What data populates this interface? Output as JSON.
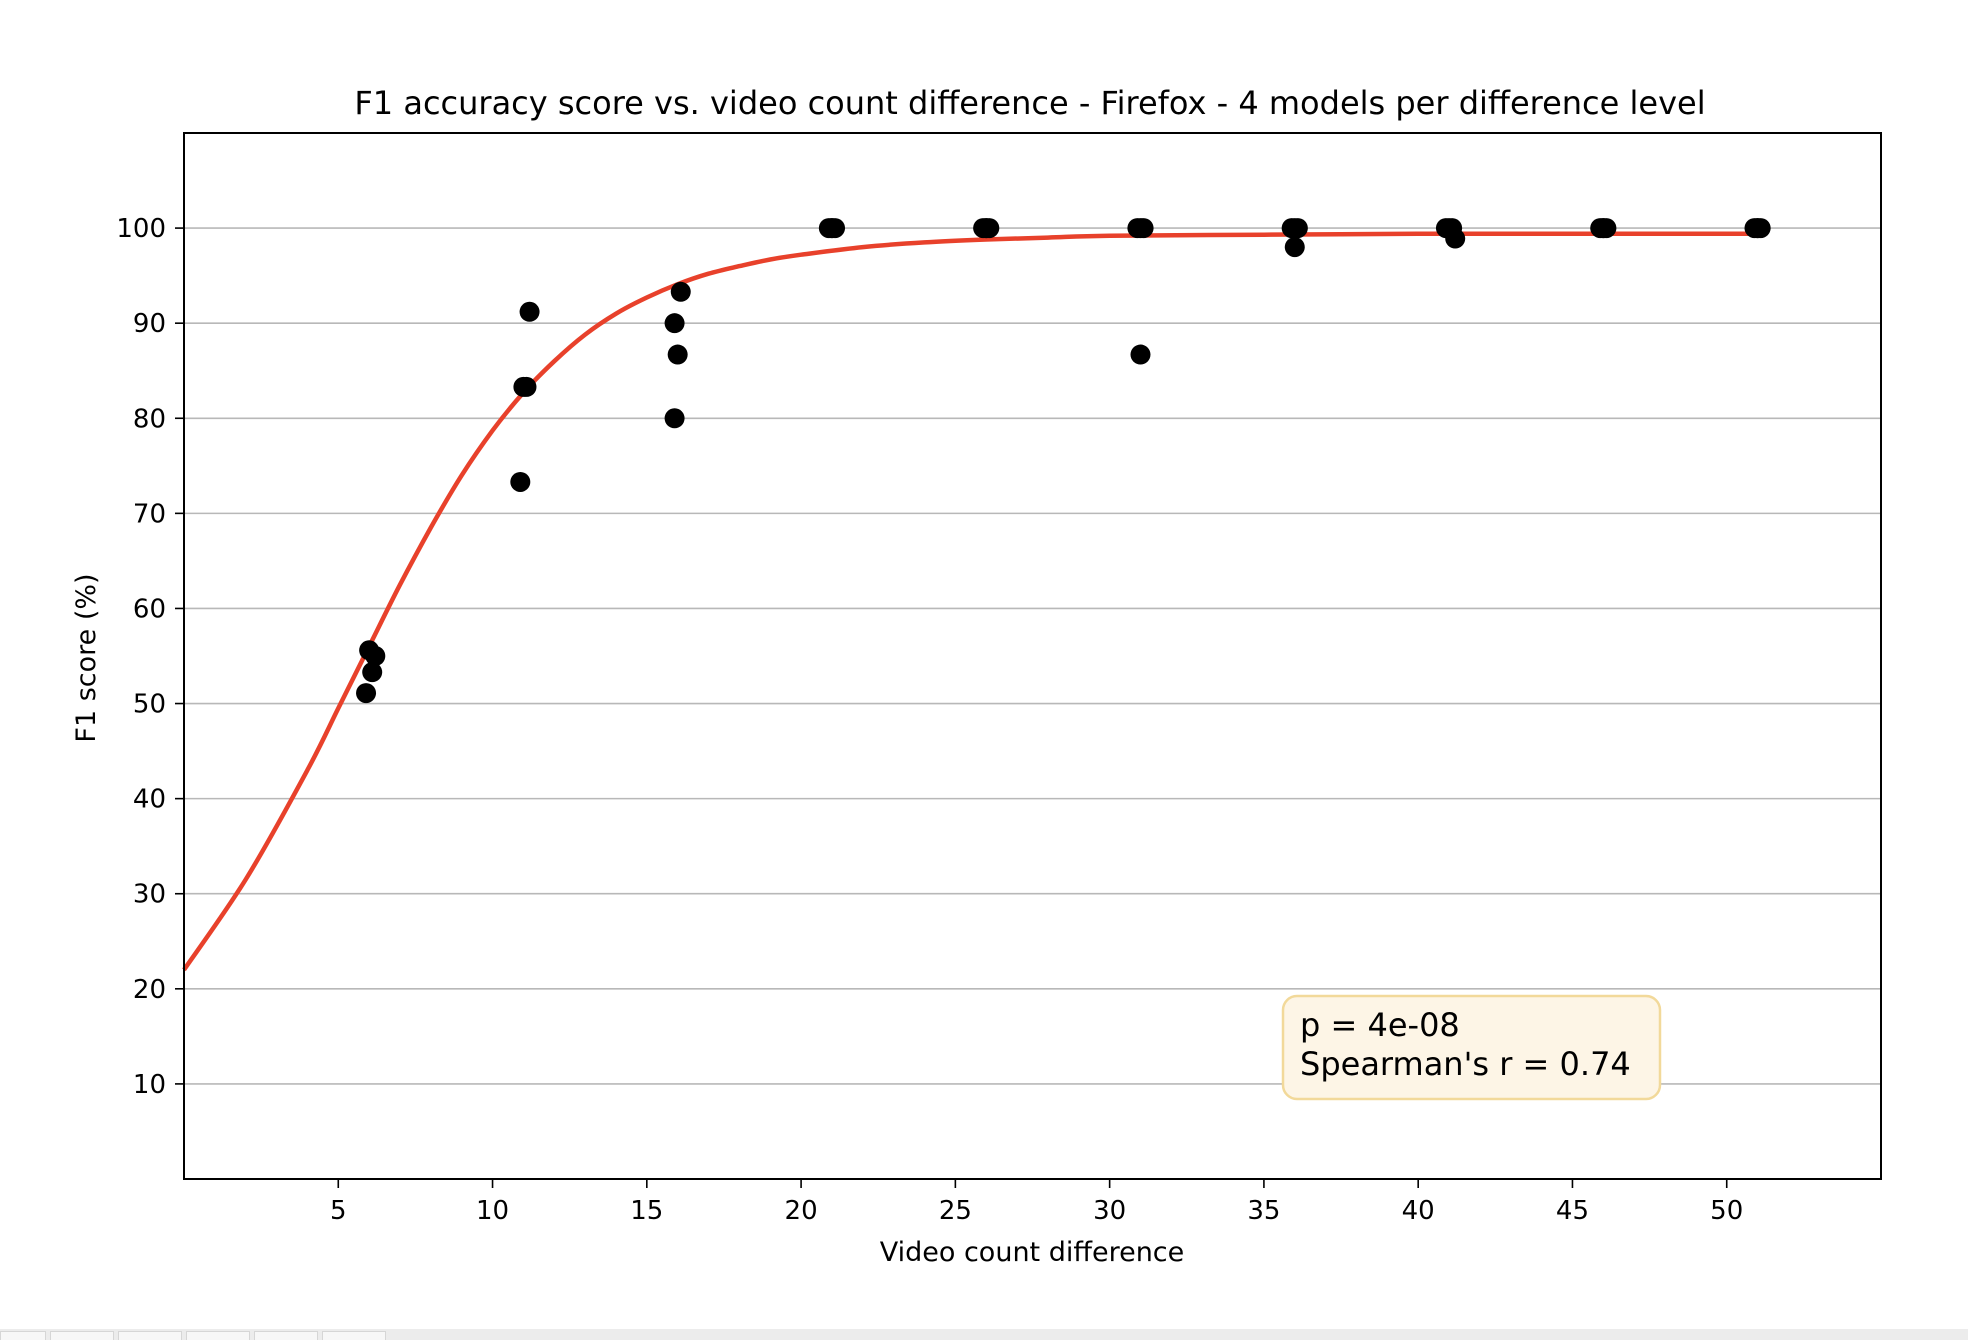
{
  "chart_data": {
    "type": "scatter",
    "title": "F1 accuracy score vs. video count difference - Firefox - 4 models per difference level",
    "xlabel": "Video count difference",
    "ylabel": "F1 score (%)",
    "xlim": [
      0,
      55
    ],
    "ylim": [
      0,
      110
    ],
    "x_ticks": [
      5,
      10,
      15,
      20,
      25,
      30,
      35,
      40,
      45,
      50
    ],
    "y_ticks": [
      10,
      20,
      30,
      40,
      50,
      60,
      70,
      80,
      90,
      100
    ],
    "grid": "horizontal",
    "points": [
      {
        "x": 5.9,
        "y": 51.1
      },
      {
        "x": 6.1,
        "y": 53.3
      },
      {
        "x": 6.2,
        "y": 55.0
      },
      {
        "x": 6.0,
        "y": 55.6
      },
      {
        "x": 10.9,
        "y": 73.3
      },
      {
        "x": 11.0,
        "y": 83.3
      },
      {
        "x": 11.1,
        "y": 83.3
      },
      {
        "x": 11.2,
        "y": 91.2
      },
      {
        "x": 15.9,
        "y": 80.0
      },
      {
        "x": 15.9,
        "y": 90.0
      },
      {
        "x": 16.0,
        "y": 86.7
      },
      {
        "x": 16.1,
        "y": 93.3
      },
      {
        "x": 20.9,
        "y": 100
      },
      {
        "x": 21.0,
        "y": 100
      },
      {
        "x": 21.1,
        "y": 100
      },
      {
        "x": 21.0,
        "y": 100
      },
      {
        "x": 25.9,
        "y": 100
      },
      {
        "x": 26.0,
        "y": 100
      },
      {
        "x": 26.1,
        "y": 100
      },
      {
        "x": 26.0,
        "y": 100
      },
      {
        "x": 30.9,
        "y": 100
      },
      {
        "x": 31.0,
        "y": 100
      },
      {
        "x": 31.1,
        "y": 100
      },
      {
        "x": 31.0,
        "y": 86.7
      },
      {
        "x": 35.9,
        "y": 100
      },
      {
        "x": 36.0,
        "y": 100
      },
      {
        "x": 36.1,
        "y": 100
      },
      {
        "x": 36.0,
        "y": 98.0
      },
      {
        "x": 40.9,
        "y": 100
      },
      {
        "x": 41.0,
        "y": 100
      },
      {
        "x": 41.1,
        "y": 100
      },
      {
        "x": 41.2,
        "y": 98.9
      },
      {
        "x": 45.9,
        "y": 100
      },
      {
        "x": 46.0,
        "y": 100
      },
      {
        "x": 46.1,
        "y": 100
      },
      {
        "x": 46.0,
        "y": 100
      },
      {
        "x": 50.9,
        "y": 100
      },
      {
        "x": 51.0,
        "y": 100
      },
      {
        "x": 51.1,
        "y": 100
      },
      {
        "x": 51.0,
        "y": 100
      }
    ],
    "point_color": "#000000",
    "fit_curve": {
      "type": "logistic",
      "color": "#e8412b",
      "x": [
        0,
        2,
        4,
        5,
        6,
        7,
        8,
        9,
        10,
        11,
        12,
        13,
        14,
        15,
        16,
        17,
        18,
        19,
        20,
        22,
        24,
        26,
        28,
        30,
        35,
        40,
        45,
        51
      ],
      "y": [
        22.0,
        31.5,
        43.0,
        49.5,
        56.0,
        62.5,
        68.5,
        74.0,
        78.7,
        82.7,
        86.0,
        88.8,
        91.0,
        92.7,
        94.1,
        95.2,
        96.0,
        96.7,
        97.2,
        98.0,
        98.5,
        98.8,
        99.0,
        99.2,
        99.3,
        99.4,
        99.4,
        99.4
      ]
    },
    "annotation": {
      "lines": [
        "p = 4e-08",
        "Spearman's r = 0.74"
      ],
      "background": "#fdf5e6",
      "border": "#f2d99a"
    }
  }
}
